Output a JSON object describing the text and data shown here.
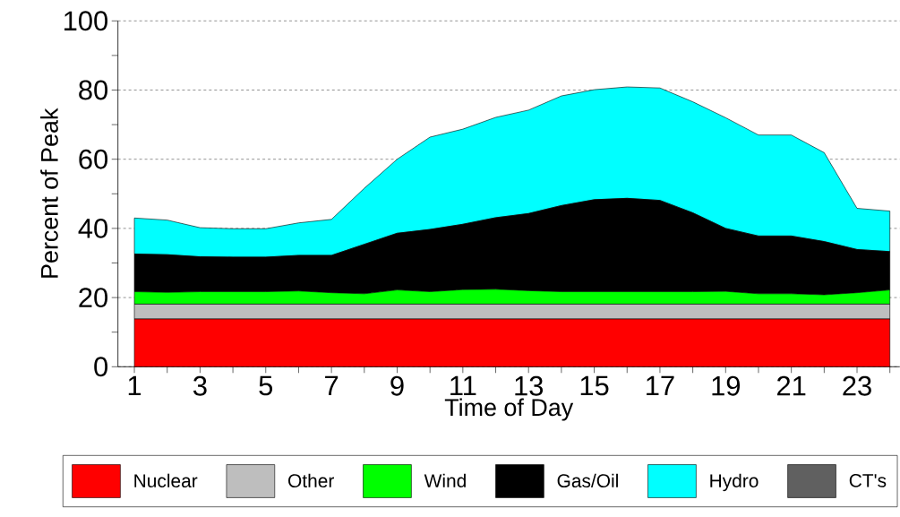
{
  "chart_data": {
    "type": "area",
    "stacked": true,
    "xlabel": "Time of Day",
    "ylabel": "Percent of Peak",
    "x": [
      1,
      2,
      3,
      4,
      5,
      6,
      7,
      8,
      9,
      10,
      11,
      12,
      13,
      14,
      15,
      16,
      17,
      18,
      19,
      20,
      21,
      22,
      23,
      24
    ],
    "xlim": [
      0.5,
      24.3
    ],
    "xticks": [
      1,
      {
        "value": 2,
        "label": null
      },
      3,
      {
        "value": 4,
        "label": null
      },
      5,
      {
        "value": 6,
        "label": null
      },
      7,
      {
        "value": 8,
        "label": null
      },
      9,
      {
        "value": 10,
        "label": null
      },
      11,
      {
        "value": 12,
        "label": null
      },
      13,
      {
        "value": 14,
        "label": null
      },
      15,
      {
        "value": 16,
        "label": null
      },
      17,
      {
        "value": 18,
        "label": null
      },
      19,
      {
        "value": 20,
        "label": null
      },
      21,
      {
        "value": 22,
        "label": null
      },
      23,
      {
        "value": 24,
        "label": null
      }
    ],
    "ylim": [
      0,
      100
    ],
    "yticks": [
      0,
      {
        "value": 10,
        "label": null
      },
      20,
      {
        "value": 30,
        "label": null
      },
      40,
      {
        "value": 50,
        "label": null
      },
      60,
      {
        "value": 70,
        "label": null
      },
      80,
      {
        "value": 90,
        "label": null
      },
      100
    ],
    "grid": "y",
    "legend": "bottom",
    "series": [
      {
        "name": "Nuclear",
        "color": "#ff0000",
        "values": [
          13.8,
          13.8,
          13.8,
          13.8,
          13.8,
          13.8,
          13.8,
          13.8,
          13.8,
          13.8,
          13.8,
          13.8,
          13.8,
          13.8,
          13.8,
          13.8,
          13.8,
          13.8,
          13.8,
          13.8,
          13.8,
          13.8,
          13.8,
          13.8
        ]
      },
      {
        "name": "Other",
        "color": "#bebebe",
        "values": [
          4.3,
          4.3,
          4.3,
          4.3,
          4.3,
          4.3,
          4.3,
          4.3,
          4.3,
          4.3,
          4.3,
          4.3,
          4.3,
          4.3,
          4.3,
          4.3,
          4.3,
          4.3,
          4.3,
          4.3,
          4.3,
          4.3,
          4.3,
          4.3
        ]
      },
      {
        "name": "Wind",
        "color": "#00ff00",
        "values": [
          3.6,
          3.4,
          3.6,
          3.6,
          3.6,
          3.8,
          3.3,
          3.0,
          4.1,
          3.6,
          4.2,
          4.3,
          3.9,
          3.6,
          3.6,
          3.6,
          3.6,
          3.6,
          3.7,
          3.0,
          3.0,
          2.7,
          3.3,
          4.1
        ]
      },
      {
        "name": "Gas/Oil",
        "color": "#000000",
        "values": [
          10.9,
          10.9,
          10.1,
          10.0,
          10.0,
          10.3,
          10.8,
          14.3,
          16.4,
          18.0,
          18.9,
          20.7,
          22.3,
          24.9,
          26.6,
          27.0,
          26.4,
          22.8,
          18.2,
          16.7,
          16.7,
          15.4,
          12.5,
          11.1
        ]
      },
      {
        "name": "Hydro",
        "color": "#00ffff",
        "values": [
          10.4,
          10.0,
          8.4,
          8.2,
          8.2,
          9.4,
          10.4,
          16.2,
          21.4,
          26.7,
          27.5,
          29.0,
          29.9,
          31.7,
          31.8,
          32.2,
          32.5,
          32.1,
          32.0,
          29.2,
          29.2,
          25.7,
          11.9,
          11.7
        ]
      },
      {
        "name": "CT's",
        "color": "#606060",
        "values": [
          null,
          null,
          null,
          null,
          null,
          null,
          null,
          null,
          null,
          null,
          null,
          null,
          null,
          null,
          null,
          null,
          null,
          null,
          null,
          null,
          null,
          null,
          null,
          null
        ]
      }
    ]
  }
}
